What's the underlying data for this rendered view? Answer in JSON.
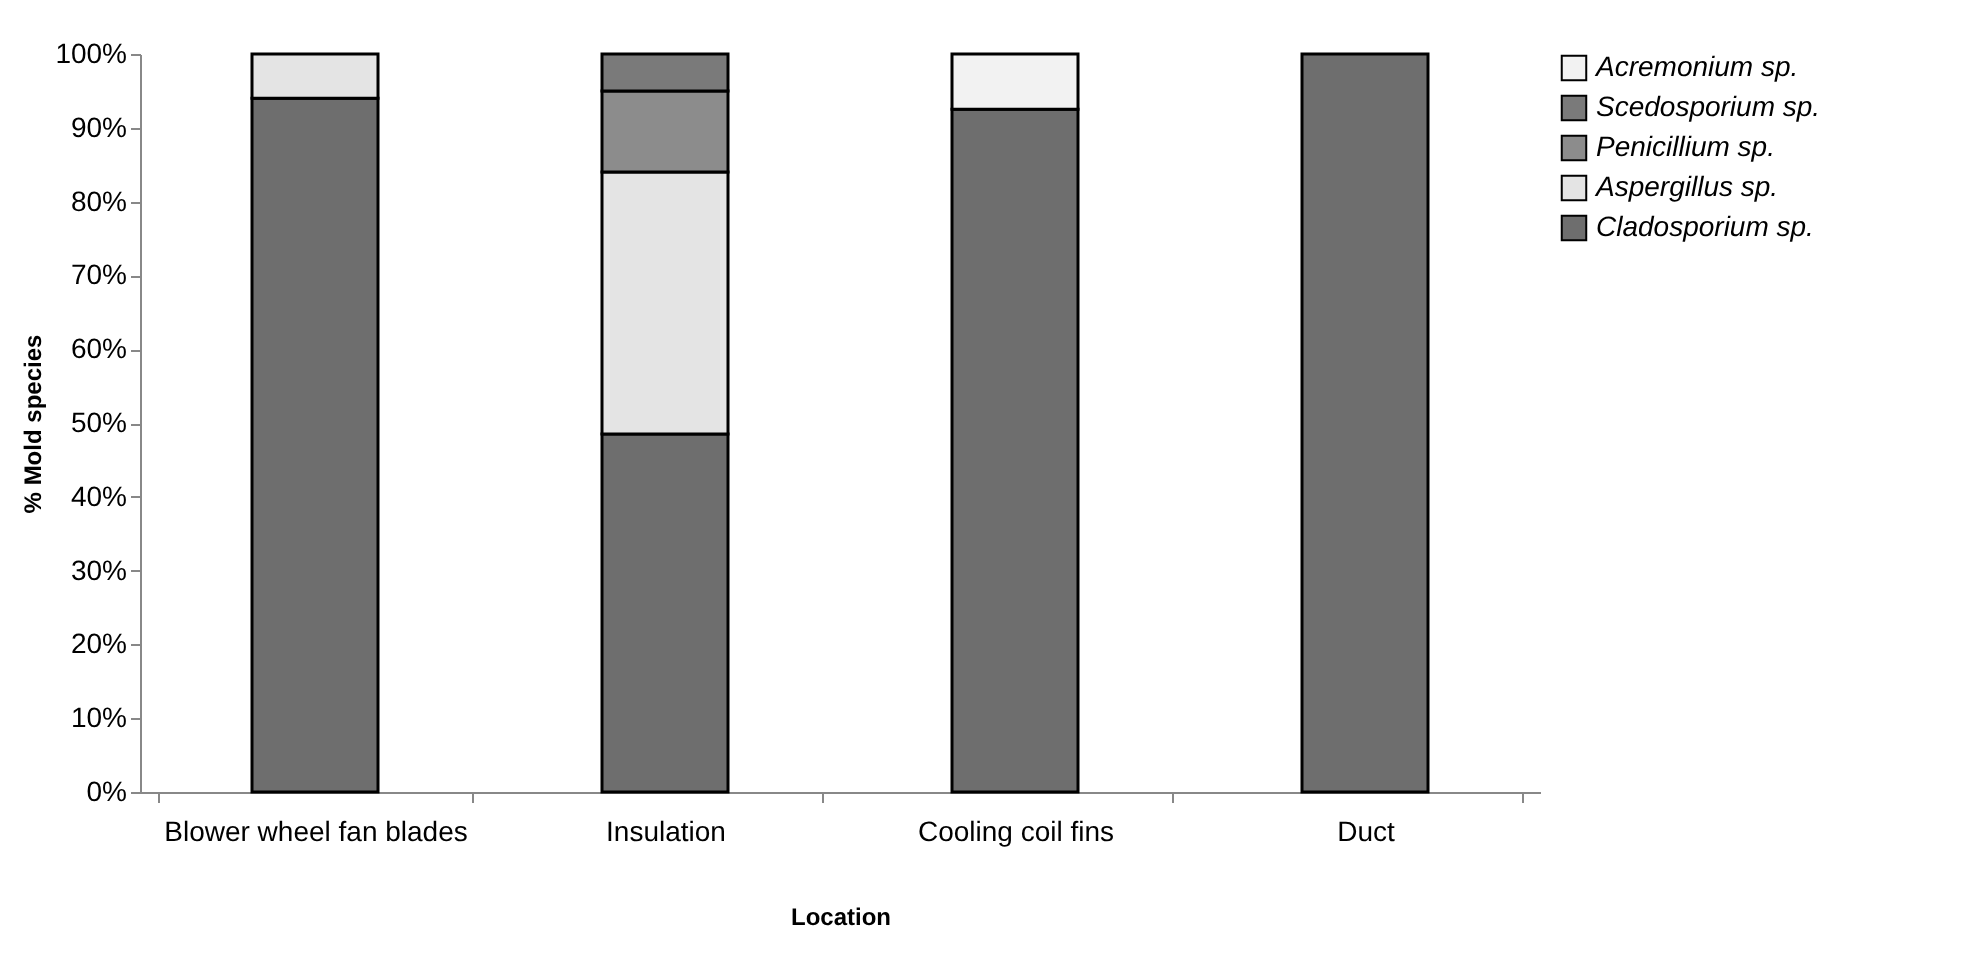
{
  "chart_data": {
    "type": "bar",
    "stacked": true,
    "xlabel": "Location",
    "ylabel": "% Mold species",
    "categories": [
      "Blower wheel fan blades",
      "Insulation",
      "Cooling coil fins",
      "Duct"
    ],
    "series": [
      {
        "name": "Cladosporium sp.",
        "color": "#6e6e6e",
        "values": [
          94,
          48.5,
          92.5,
          100
        ]
      },
      {
        "name": "Aspergillus sp.",
        "color": "#e4e4e4",
        "values": [
          6,
          35.5,
          null,
          null
        ]
      },
      {
        "name": "Penicillium sp.",
        "color": "#8c8c8c",
        "values": [
          null,
          11,
          null,
          null
        ]
      },
      {
        "name": "Scedosporium sp.",
        "color": "#7a7a7a",
        "values": [
          null,
          5,
          null,
          null
        ]
      },
      {
        "name": "Acremonium sp.",
        "color": "#f2f2f2",
        "values": [
          null,
          null,
          7.5,
          null
        ]
      }
    ],
    "ylim": [
      0,
      100
    ],
    "yticks": [
      {
        "value": 0,
        "label": "0%"
      },
      {
        "value": 10,
        "label": "10%"
      },
      {
        "value": 20,
        "label": "20%"
      },
      {
        "value": 30,
        "label": "30%"
      },
      {
        "value": 40,
        "label": "40%"
      },
      {
        "value": 50,
        "label": "50%"
      },
      {
        "value": 60,
        "label": "60%"
      },
      {
        "value": 70,
        "label": "70%"
      },
      {
        "value": 80,
        "label": "80%"
      },
      {
        "value": 90,
        "label": "90%"
      },
      {
        "value": 100,
        "label": "100%"
      }
    ],
    "grid": false,
    "legend": "right"
  }
}
